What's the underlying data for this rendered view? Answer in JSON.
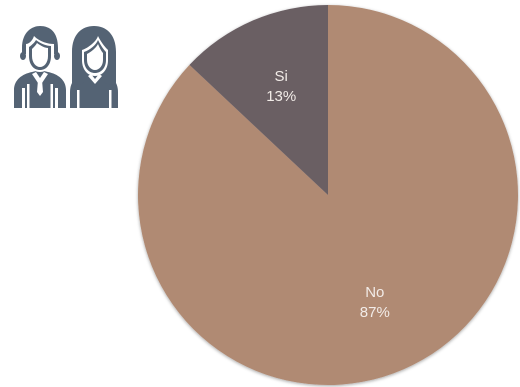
{
  "chart_data": {
    "type": "pie",
    "title": "",
    "slices": [
      {
        "label": "No",
        "value": 87,
        "display": "87%",
        "color": "#b08a73"
      },
      {
        "label": "Si",
        "value": 13,
        "display": "13%",
        "color": "#6a5e64"
      }
    ],
    "start_angle_deg": -90,
    "direction": "clockwise",
    "label_color": "#f2ece8"
  },
  "icons": {
    "people": {
      "name": "man-and-woman-icon",
      "color": "#546374"
    }
  }
}
